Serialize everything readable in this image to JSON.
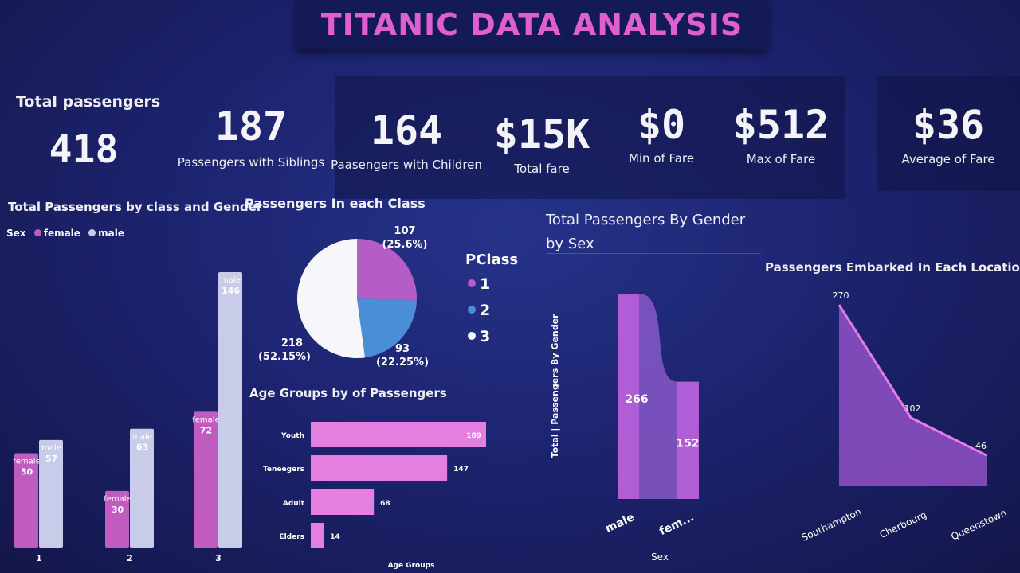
{
  "header": {
    "title": "TITANIC DATA ANALYSIS"
  },
  "kpis": {
    "total_passengers": {
      "label": "Total passengers",
      "value": "418"
    },
    "siblings": {
      "label": "Passengers with Siblings",
      "value": "187"
    },
    "children": {
      "label": "Paasengers with Children",
      "value": "164"
    },
    "total_fare": {
      "label": "Total fare",
      "value": "$15K"
    },
    "min_fare": {
      "label": "Min of Fare",
      "value": "$0"
    },
    "max_fare": {
      "label": "Max of Fare",
      "value": "$512"
    },
    "avg_fare": {
      "label": "Average of Fare",
      "value": "$36"
    }
  },
  "colors": {
    "female": "#c05cc0",
    "male": "#c8cce8",
    "class1": "#b65cc7",
    "class2": "#4a8ed6",
    "class3": "#f6f6fb",
    "pink": "#e47fe0",
    "purple": "#8a4fc0"
  },
  "chart_data": [
    {
      "id": "class_gender",
      "type": "bar",
      "title": "Total Passengers by class and Gender",
      "legend_title": "Sex",
      "categories": [
        "1",
        "2",
        "3"
      ],
      "series": [
        {
          "name": "female",
          "values": [
            50,
            30,
            72
          ]
        },
        {
          "name": "male",
          "values": [
            57,
            63,
            146
          ]
        }
      ],
      "ylim": [
        0,
        146
      ]
    },
    {
      "id": "class_pie",
      "type": "pie",
      "title": "Passengers In each Class",
      "legend_title": "PClass",
      "categories": [
        "1",
        "2",
        "3"
      ],
      "values": [
        107,
        93,
        218
      ],
      "value_labels": [
        "107",
        "93",
        "218"
      ],
      "percent_labels": [
        "(25.6%)",
        "(22.25%)",
        "(52.15%)"
      ]
    },
    {
      "id": "age_groups",
      "type": "bar",
      "orientation": "horizontal",
      "title": "Age Groups by of Passengers",
      "xlabel": "Age Groups",
      "categories": [
        "Youth",
        "Teneegers",
        "Adult",
        "Elders"
      ],
      "values": [
        189,
        147,
        68,
        14
      ]
    },
    {
      "id": "gender_ribbon",
      "type": "bar",
      "title": "Total Passengers By Gender by Sex",
      "title_lines": [
        "Total Passengers By Gender",
        "by Sex"
      ],
      "xlabel": "Sex",
      "ylabel": "Total | Passengers By Gender",
      "categories": [
        "male",
        "fem..."
      ],
      "values": [
        266,
        152
      ]
    },
    {
      "id": "embarked",
      "type": "area",
      "title": "Passengers Embarked In Each Location",
      "categories": [
        "Southampton",
        "Cherbourg",
        "Queenstown"
      ],
      "values": [
        270,
        102,
        46
      ],
      "ylim": [
        0,
        270
      ]
    }
  ]
}
